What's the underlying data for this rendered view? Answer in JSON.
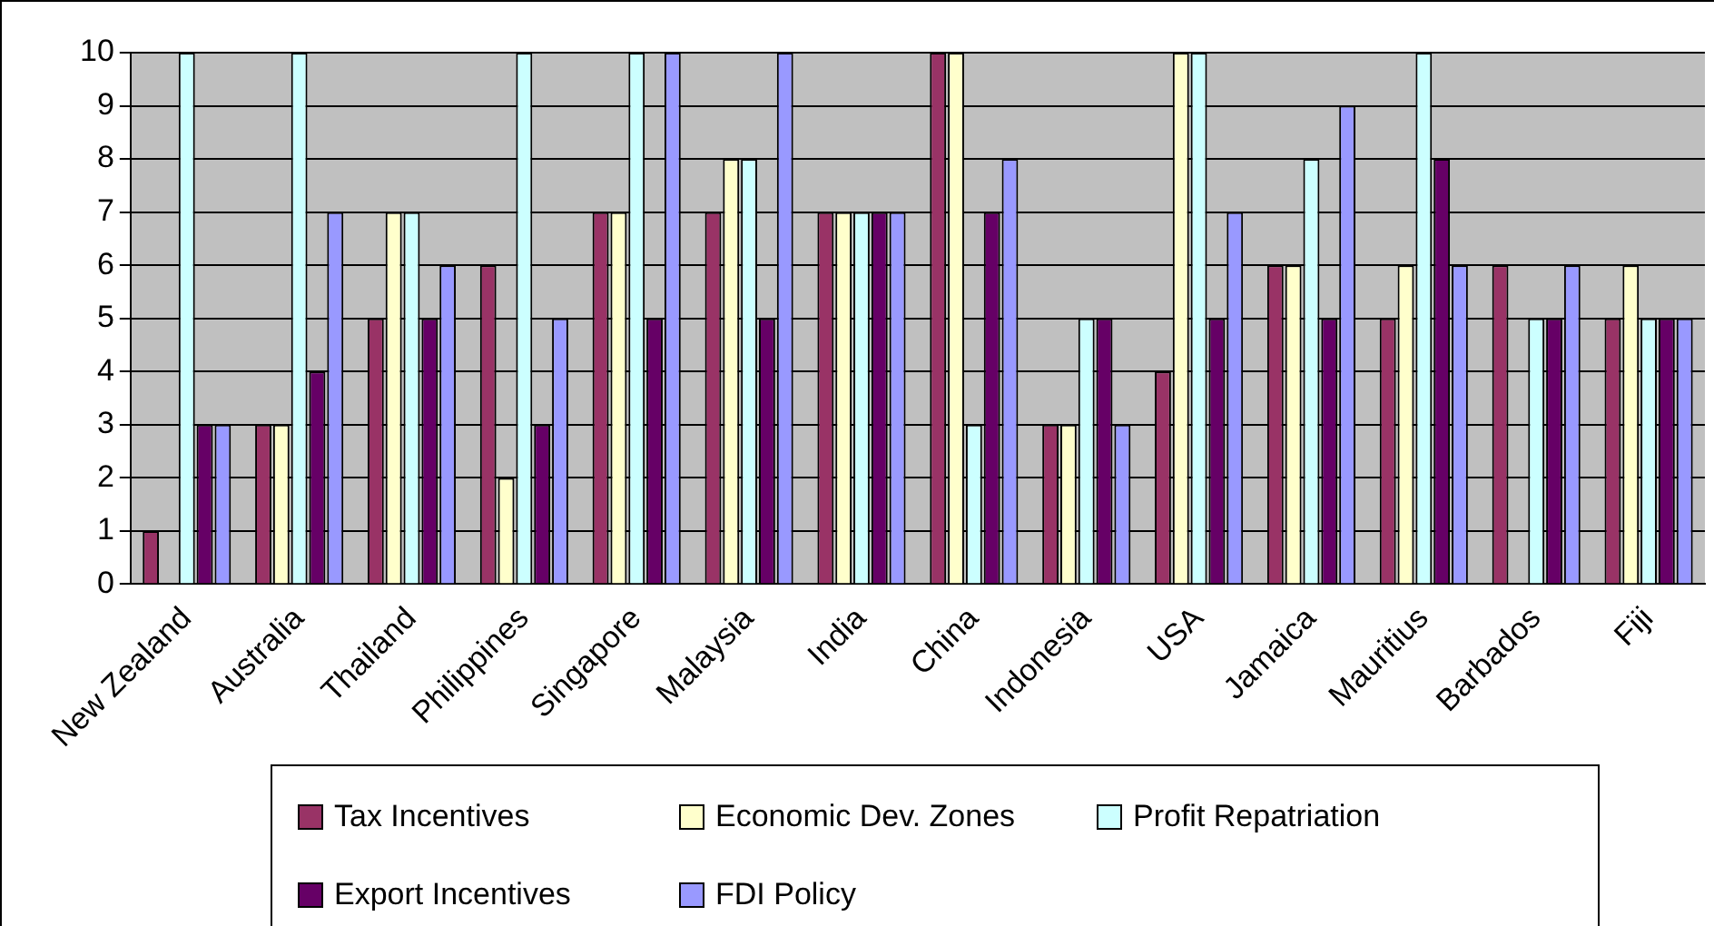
{
  "chart_data": {
    "type": "bar",
    "categories": [
      "New Zealand",
      "Australia",
      "Thailand",
      "Philippines",
      "Singapore",
      "Malaysia",
      "India",
      "China",
      "Indonesia",
      "USA",
      "Jamaica",
      "Mauritius",
      "Barbados",
      "Fiji"
    ],
    "series": [
      {
        "name": "Tax Incentives",
        "color": "#993366",
        "values": [
          1,
          3,
          5,
          6,
          7,
          7,
          7,
          10,
          3,
          4,
          6,
          5,
          6,
          5
        ]
      },
      {
        "name": "Economic Dev. Zones",
        "color": "#ffffcc",
        "values": [
          0,
          3,
          7,
          2,
          7,
          8,
          7,
          10,
          3,
          10,
          6,
          6,
          0,
          6
        ]
      },
      {
        "name": "Profit Repatriation",
        "color": "#ccffff",
        "values": [
          10,
          10,
          7,
          10,
          10,
          8,
          7,
          3,
          5,
          10,
          8,
          10,
          5,
          5
        ]
      },
      {
        "name": "Export Incentives",
        "color": "#660066",
        "values": [
          3,
          4,
          5,
          3,
          5,
          5,
          7,
          7,
          5,
          5,
          5,
          8,
          5,
          5
        ]
      },
      {
        "name": "FDI Policy",
        "color": "#9999ff",
        "values": [
          3,
          7,
          6,
          5,
          10,
          10,
          7,
          8,
          3,
          7,
          9,
          6,
          6,
          5
        ]
      }
    ],
    "ylim": [
      0,
      10
    ],
    "yticks": [
      0,
      1,
      2,
      3,
      4,
      5,
      6,
      7,
      8,
      9,
      10
    ],
    "grid": "y",
    "legend": "bottom"
  }
}
